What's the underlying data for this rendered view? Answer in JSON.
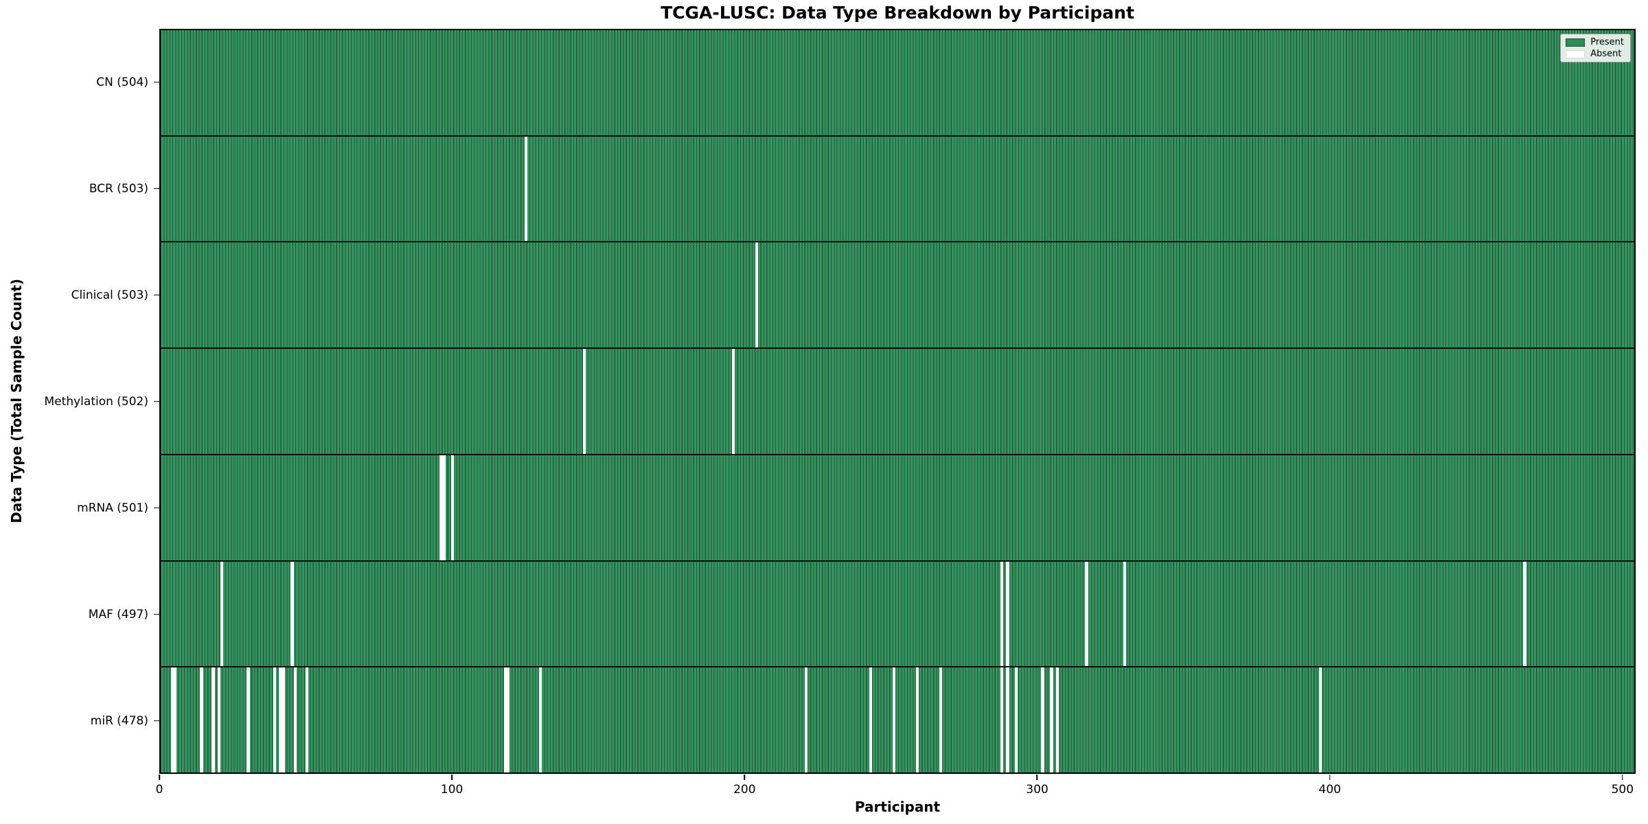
{
  "chart_data": {
    "type": "heatmap",
    "title": "TCGA-LUSC: Data Type Breakdown by Participant",
    "xlabel": "Participant",
    "ylabel": "Data Type (Total Sample Count)",
    "legend_present": "Present",
    "legend_absent": "Absent",
    "legend_position": "upper right",
    "grid": false,
    "x_ticks": [
      0,
      100,
      200,
      300,
      400,
      500
    ],
    "x_axis_max": 504.5,
    "n_participants": 504,
    "colors": {
      "present_fill": "#37935f",
      "bar_edge": "#1e5a3a",
      "absent": "#ffffff",
      "legend_swatch_green": "#2e8b57"
    },
    "rows": [
      {
        "data_type": "CN",
        "label": "CN (504)",
        "present_count": 504,
        "absent_participants": []
      },
      {
        "data_type": "BCR",
        "label": "BCR (503)",
        "present_count": 503,
        "absent_participants": [
          125
        ]
      },
      {
        "data_type": "Clinical",
        "label": "Clinical (503)",
        "present_count": 503,
        "absent_participants": [
          204
        ]
      },
      {
        "data_type": "Methylation",
        "label": "Methylation (502)",
        "present_count": 502,
        "absent_participants": [
          145,
          196
        ]
      },
      {
        "data_type": "mRNA",
        "label": "mRNA (501)",
        "present_count": 501,
        "absent_participants": [
          96,
          97,
          100
        ]
      },
      {
        "data_type": "MAF",
        "label": "MAF (497)",
        "present_count": 497,
        "absent_participants": [
          21,
          45,
          288,
          290,
          317,
          330,
          467
        ]
      },
      {
        "data_type": "miR",
        "label": "miR (478)",
        "present_count": 478,
        "absent_participants": [
          4,
          5,
          14,
          18,
          20,
          30,
          39,
          41,
          42,
          46,
          50,
          118,
          119,
          130,
          221,
          243,
          251,
          259,
          267,
          288,
          290,
          293,
          302,
          305,
          307,
          397
        ]
      }
    ]
  }
}
